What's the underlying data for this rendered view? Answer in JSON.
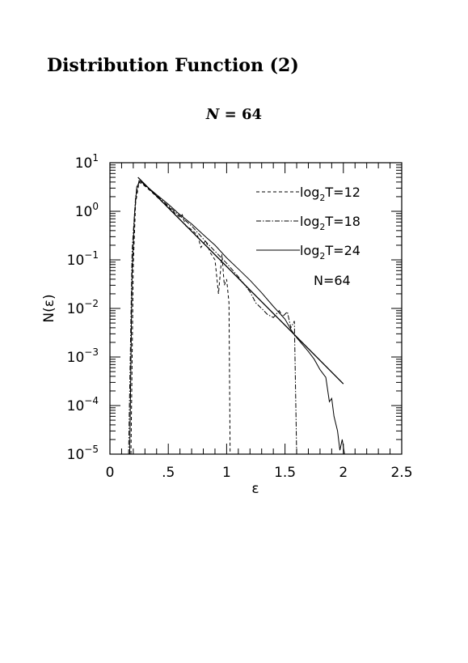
{
  "page_title": "Distribution Function (2)",
  "chart_title": {
    "variable": "N",
    "text": "= 64"
  },
  "chart_data": {
    "type": "line",
    "xlabel": "ε",
    "ylabel": "N(ε)",
    "xlim": [
      0,
      2.5
    ],
    "ylim": [
      1e-05,
      10
    ],
    "yscale": "log",
    "x_ticks": [
      "0",
      ".5",
      "1",
      "1.5",
      "2",
      "2.5"
    ],
    "y_ticks": [
      {
        "base": "10",
        "exp": "−5"
      },
      {
        "base": "10",
        "exp": "−4"
      },
      {
        "base": "10",
        "exp": "−3"
      },
      {
        "base": "10",
        "exp": "−2"
      },
      {
        "base": "10",
        "exp": "−1"
      },
      {
        "base": "10",
        "exp": "0"
      },
      {
        "base": "10",
        "exp": "1"
      }
    ],
    "annotation": "N=64",
    "legend_position": "top-right",
    "series": [
      {
        "name": "log2T=12",
        "label_pre": "log",
        "label_sub": "2",
        "label_post": "T=12",
        "style": "dashed",
        "points": [
          [
            0.18,
            1e-05
          ],
          [
            0.2,
            0.08
          ],
          [
            0.22,
            1.5
          ],
          [
            0.25,
            4.0
          ],
          [
            0.3,
            3.3
          ],
          [
            0.35,
            2.6
          ],
          [
            0.4,
            2.0
          ],
          [
            0.45,
            1.55
          ],
          [
            0.5,
            1.25
          ],
          [
            0.55,
            0.95
          ],
          [
            0.6,
            0.75
          ],
          [
            0.62,
            0.85
          ],
          [
            0.65,
            0.5
          ],
          [
            0.7,
            0.42
          ],
          [
            0.75,
            0.32
          ],
          [
            0.78,
            0.18
          ],
          [
            0.82,
            0.25
          ],
          [
            0.86,
            0.14
          ],
          [
            0.9,
            0.1
          ],
          [
            0.93,
            0.02
          ],
          [
            0.96,
            0.13
          ],
          [
            0.98,
            0.03
          ],
          [
            1.0,
            0.04
          ],
          [
            1.02,
            0.013
          ],
          [
            1.03,
            1e-05
          ]
        ]
      },
      {
        "name": "log2T=18",
        "label_pre": "log",
        "label_sub": "2",
        "label_post": "T=18",
        "style": "dashdot",
        "points": [
          [
            0.16,
            1e-05
          ],
          [
            0.19,
            0.15
          ],
          [
            0.22,
            2.0
          ],
          [
            0.25,
            4.3
          ],
          [
            0.3,
            3.4
          ],
          [
            0.4,
            2.1
          ],
          [
            0.5,
            1.3
          ],
          [
            0.6,
            0.8
          ],
          [
            0.7,
            0.5
          ],
          [
            0.8,
            0.27
          ],
          [
            0.85,
            0.2
          ],
          [
            0.9,
            0.15
          ],
          [
            1.0,
            0.085
          ],
          [
            1.1,
            0.045
          ],
          [
            1.2,
            0.022
          ],
          [
            1.25,
            0.013
          ],
          [
            1.3,
            0.01
          ],
          [
            1.35,
            0.0075
          ],
          [
            1.4,
            0.0065
          ],
          [
            1.45,
            0.009
          ],
          [
            1.48,
            0.0068
          ],
          [
            1.52,
            0.0085
          ],
          [
            1.55,
            0.004
          ],
          [
            1.58,
            0.0055
          ],
          [
            1.6,
            1e-05
          ]
        ]
      },
      {
        "name": "log2T=24",
        "label_pre": "log",
        "label_sub": "2",
        "label_post": "T=24",
        "style": "solid",
        "points": [
          [
            0.17,
            1e-05
          ],
          [
            0.19,
            0.05
          ],
          [
            0.21,
            0.8
          ],
          [
            0.23,
            3.2
          ],
          [
            0.26,
            4.2
          ],
          [
            0.3,
            3.5
          ],
          [
            0.4,
            2.2
          ],
          [
            0.5,
            1.4
          ],
          [
            0.6,
            0.85
          ],
          [
            0.7,
            0.55
          ],
          [
            0.8,
            0.33
          ],
          [
            0.9,
            0.2
          ],
          [
            1.0,
            0.11
          ],
          [
            1.1,
            0.065
          ],
          [
            1.2,
            0.038
          ],
          [
            1.3,
            0.021
          ],
          [
            1.4,
            0.011
          ],
          [
            1.5,
            0.006
          ],
          [
            1.55,
            0.0037
          ],
          [
            1.6,
            0.0025
          ],
          [
            1.65,
            0.0018
          ],
          [
            1.7,
            0.0013
          ],
          [
            1.75,
            0.0009
          ],
          [
            1.8,
            0.00055
          ],
          [
            1.85,
            0.00038
          ],
          [
            1.88,
            0.00012
          ],
          [
            1.9,
            0.00014
          ],
          [
            1.92,
            6e-05
          ],
          [
            1.95,
            3e-05
          ],
          [
            1.97,
            1.2e-05
          ],
          [
            1.99,
            2e-05
          ],
          [
            2.01,
            1e-05
          ]
        ]
      },
      {
        "name": "fit",
        "style": "solid-fit",
        "points": [
          [
            0.24,
            5.0
          ],
          [
            2.0,
            0.00028
          ]
        ]
      }
    ]
  }
}
